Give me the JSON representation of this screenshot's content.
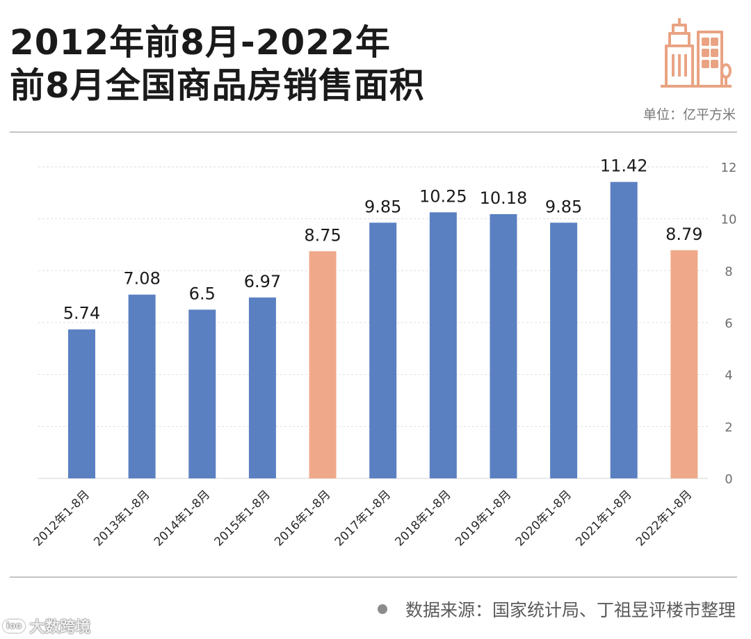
{
  "title": {
    "line1": "2012年前8月-2022年",
    "line2": "前8月全国商品房销售面积"
  },
  "unit_label": "单位：亿平方米",
  "source_label": "数据来源：国家统计局、丁祖昱评楼市整理",
  "brand_label": "大数跨境",
  "brand_logo_text": "ioo",
  "icon": "city-buildings-icon",
  "colors": {
    "accent": "#e9a383",
    "bar_blue": "#5b80c2",
    "bar_orange": "#efa98a"
  },
  "chart_data": {
    "type": "bar",
    "categories": [
      "2012年1-8月",
      "2013年1-8月",
      "2014年1-8月",
      "2015年1-8月",
      "2016年1-8月",
      "2017年1-8月",
      "2018年1-8月",
      "2019年1-8月",
      "2020年1-8月",
      "2021年1-8月",
      "2022年1-8月"
    ],
    "values": [
      5.74,
      7.08,
      6.5,
      6.97,
      8.75,
      9.85,
      10.25,
      10.18,
      9.85,
      11.42,
      8.79
    ],
    "value_labels": [
      "5.74",
      "7.08",
      "6.5",
      "6.97",
      "8.75",
      "9.85",
      "10.25",
      "10.18",
      "9.85",
      "11.42",
      "8.79"
    ],
    "highlighted": [
      false,
      false,
      false,
      false,
      true,
      false,
      false,
      false,
      false,
      false,
      true
    ],
    "ylim": [
      0,
      12
    ],
    "yticks": [
      0,
      2,
      4,
      6,
      8,
      10,
      12
    ],
    "y_axis_position": "right",
    "grid": true,
    "xlabel": "",
    "ylabel": ""
  }
}
